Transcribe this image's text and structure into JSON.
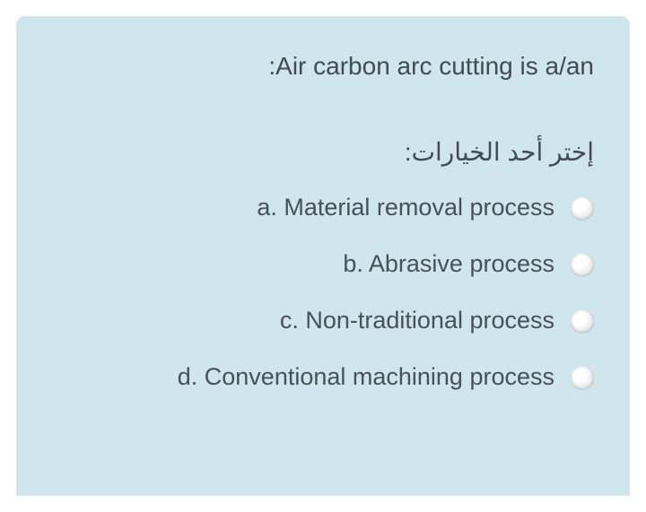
{
  "card": {
    "background_color": "#d0e6ee",
    "text_color": "#444a52",
    "option_text_color": "#495058",
    "question_fontsize": 28,
    "option_fontsize": 27
  },
  "question": {
    "text": ":Air carbon arc cutting is a/an"
  },
  "instruction": {
    "text": "إختر أحد الخيارات:"
  },
  "options": [
    {
      "label": "a. Material removal process"
    },
    {
      "label": "b. Abrasive process"
    },
    {
      "label": "c. Non-traditional process"
    },
    {
      "label": "d. Conventional machining process"
    }
  ]
}
